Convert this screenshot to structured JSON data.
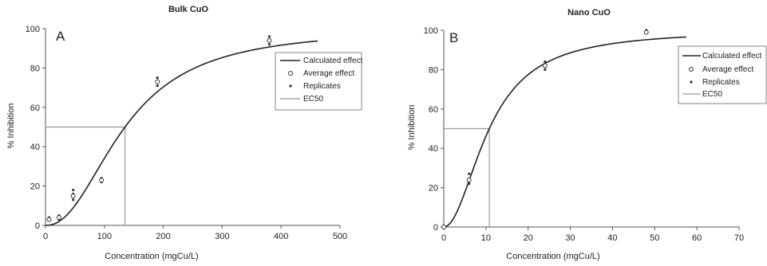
{
  "chart_data": [
    {
      "type": "scatter",
      "title": "Bulk CuO",
      "panel_label": "A",
      "xlabel": "Concentration  (mgCu/L)",
      "ylabel": "% Inhibition",
      "xlim": [
        0,
        500
      ],
      "ylim": [
        0,
        100
      ],
      "x_ticks": [
        0,
        100,
        200,
        300,
        400,
        500
      ],
      "y_ticks": [
        0,
        20,
        40,
        60,
        80,
        100
      ],
      "grid": false,
      "legend_position": "top-right",
      "legend": [
        "Calculated effect",
        "Average effect",
        "Replicates",
        "EC50"
      ],
      "calculated_effect": {
        "ec50": 135,
        "hill_slope": 2.2,
        "top": 100,
        "bottom": 0,
        "x_max": 462
      },
      "average_effect": {
        "x": [
          6,
          23,
          47,
          95,
          190,
          380
        ],
        "y": [
          3,
          4,
          15,
          23,
          73,
          94
        ]
      },
      "replicates": {
        "x": [
          6,
          6,
          23,
          23,
          47,
          47,
          47,
          95,
          95,
          95,
          190,
          190,
          380,
          380,
          380
        ],
        "y": [
          3,
          4,
          3,
          5,
          13,
          16,
          18,
          22,
          23,
          24,
          71,
          75,
          92,
          94,
          96
        ]
      },
      "ec50_line": {
        "x": 135,
        "y": 50
      }
    },
    {
      "type": "scatter",
      "title": "Nano CuO",
      "panel_label": "B",
      "xlabel": "Concentration  (mgCu/L)",
      "ylabel": "% Inhibition",
      "xlim": [
        0,
        70
      ],
      "ylim": [
        0,
        100
      ],
      "x_ticks": [
        0,
        10,
        20,
        30,
        40,
        50,
        60,
        70
      ],
      "y_ticks": [
        0,
        20,
        40,
        60,
        80,
        100
      ],
      "grid": false,
      "legend_position": "top-right",
      "legend": [
        "Calculated effect",
        "Average effect",
        "Replicates",
        "EC50"
      ],
      "calculated_effect": {
        "ec50": 10.8,
        "hill_slope": 2.0,
        "top": 100,
        "bottom": 0,
        "x_max": 57.5
      },
      "average_effect": {
        "x": [
          0,
          6,
          24,
          48
        ],
        "y": [
          0,
          24,
          82,
          99
        ]
      },
      "replicates": {
        "x": [
          0,
          6,
          6,
          6,
          24,
          24,
          24,
          48,
          48
        ],
        "y": [
          0,
          22,
          24,
          27,
          80,
          82,
          84,
          99,
          100
        ]
      },
      "ec50_line": {
        "x": 10.8,
        "y": 50
      }
    }
  ],
  "colors": {
    "curve": "#222222",
    "ec50": "#9a9a9a",
    "axis": "#555555",
    "marker": "#333333"
  }
}
